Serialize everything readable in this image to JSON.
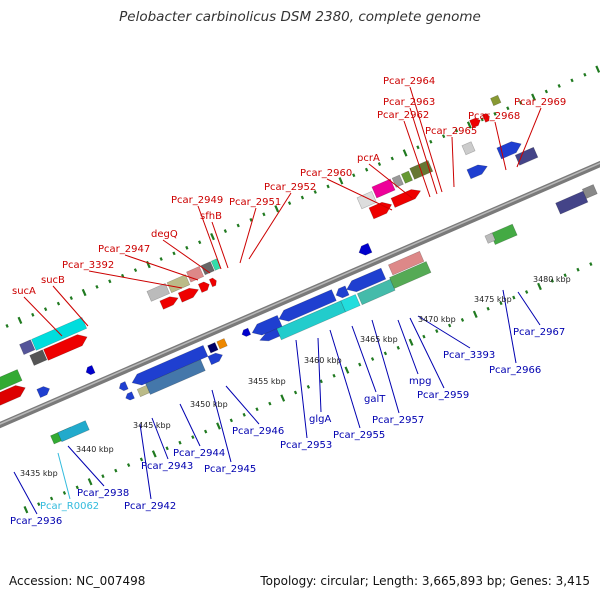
{
  "title": "Pelobacter carbinolicus DSM 2380, complete genome",
  "accession": "Accession: NC_007498",
  "topology": "Topology: circular; Length: 3,665,893 bp; Genes: 3,415",
  "colors": {
    "backbone": "#8c8c8c",
    "upper_label": "#cc0000",
    "lower_label": "#0000b0",
    "rna_label": "#33bbdd",
    "tick": "#207a20"
  },
  "scale_labels": [
    "3435 kbp",
    "3440 kbp",
    "3445 kbp",
    "3450 kbp",
    "3455 kbp",
    "3460 kbp",
    "3465 kbp",
    "3470 kbp",
    "3475 kbp",
    "3480 kbp"
  ],
  "upper_genes": [
    "sucA",
    "sucB",
    "Pcar_3392",
    "Pcar_2947",
    "degQ",
    "Pcar_2949",
    "sfhB",
    "Pcar_2951",
    "Pcar_2952",
    "Pcar_2960",
    "pcrA",
    "Pcar_2962",
    "Pcar_2963",
    "Pcar_2964",
    "Pcar_2965",
    "Pcar_2968",
    "Pcar_2969"
  ],
  "lower_genes": [
    "Pcar_2936",
    "Pcar_R0062",
    "Pcar_2938",
    "Pcar_2942",
    "Pcar_2943",
    "Pcar_2944",
    "Pcar_2945",
    "Pcar_2946",
    "Pcar_2953",
    "glgA",
    "Pcar_2955",
    "galT",
    "Pcar_2957",
    "mpg",
    "Pcar_2959",
    "Pcar_3393",
    "Pcar_2966",
    "Pcar_2967"
  ]
}
